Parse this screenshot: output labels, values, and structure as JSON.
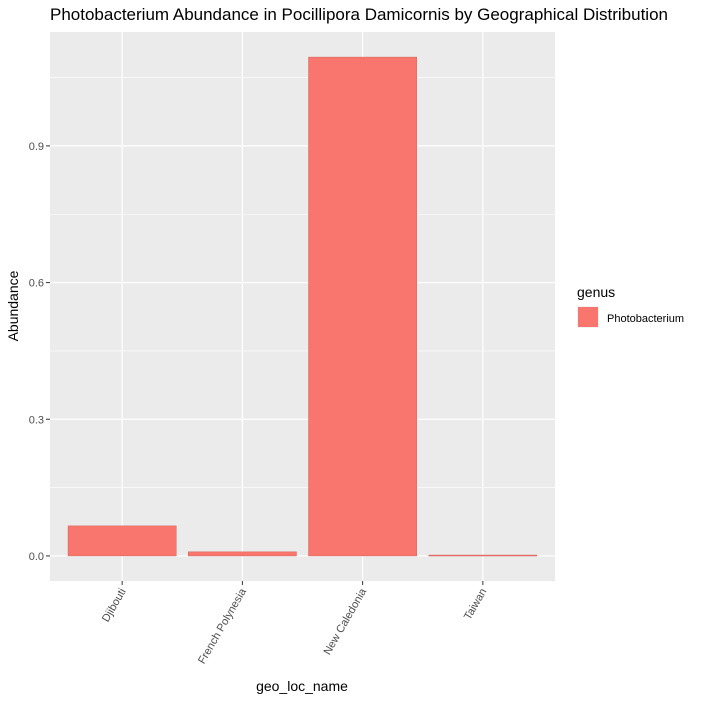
{
  "chart_data": {
    "type": "bar",
    "title": "Photobacterium Abundance in Pocillipora Damicornis by Geographical Distribution",
    "xlabel": "geo_loc_name",
    "ylabel": "Abundance",
    "categories": [
      "Djibouti",
      "French Polynesia",
      "New Caledonia",
      "Taiwan"
    ],
    "series": [
      {
        "name": "Photobacterium",
        "values": [
          0.066,
          0.009,
          1.095,
          0.002
        ],
        "color": "#F8766D"
      }
    ],
    "ylim": [
      -0.055,
      1.15
    ],
    "yticks": [
      0.0,
      0.3,
      0.6,
      0.9
    ],
    "ytick_labels": [
      "0.0",
      "0.3",
      "0.6",
      "0.9"
    ],
    "legend": {
      "title": "genus",
      "position": "right"
    },
    "panel_background": "#EBEBEB",
    "grid": true,
    "grid_color": "#FFFFFF"
  }
}
